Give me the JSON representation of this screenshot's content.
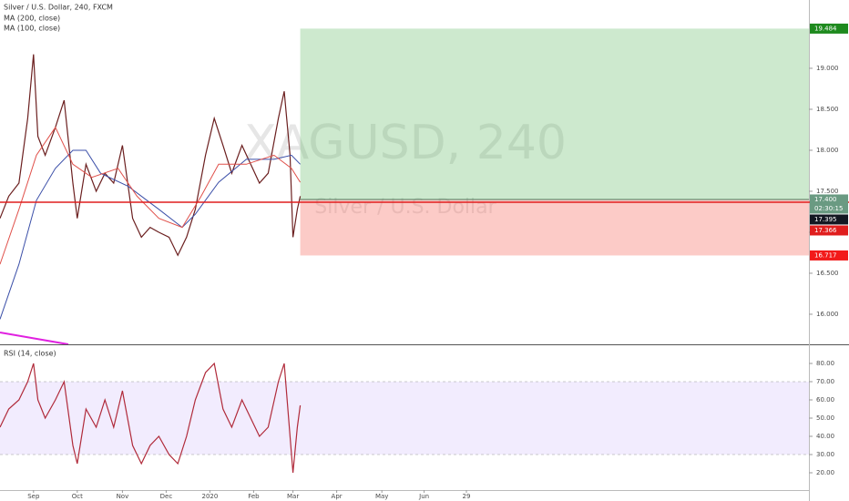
{
  "chart_data": [
    {
      "type": "line",
      "title": "Silver / U.S. Dollar, 240, FXCM",
      "watermark": {
        "symbol": "XAGUSD, 240",
        "name": "Silver / U.S. Dollar"
      },
      "xlim": [
        0,
        555
      ],
      "ylim": [
        15.633,
        19.833
      ],
      "yticks": [
        {
          "value": 16,
          "label": "16.000"
        },
        {
          "value": 16.5,
          "label": "16.500"
        },
        {
          "value": 17,
          "label": "17.000"
        },
        {
          "value": 17.5,
          "label": "17.500"
        },
        {
          "value": 18,
          "label": "18.000"
        },
        {
          "value": 18.5,
          "label": "18.500"
        },
        {
          "value": 19,
          "label": "19.000"
        }
      ],
      "series": [
        {
          "color": "#6b1f1f",
          "x": [
            0,
            6,
            13,
            19,
            23,
            26,
            31,
            38,
            44,
            50,
            53,
            59,
            66,
            72,
            78,
            84,
            91,
            97,
            103,
            109,
            116,
            122,
            128,
            134,
            141,
            147,
            153,
            159,
            166,
            172,
            178,
            184,
            191,
            195,
            199,
            201,
            204,
            206
          ],
          "values": [
            17.17,
            17.44,
            17.6,
            18.39,
            19.17,
            18.17,
            17.94,
            18.28,
            18.61,
            17.6,
            17.17,
            17.83,
            17.5,
            17.72,
            17.6,
            18.06,
            17.17,
            16.94,
            17.06,
            17.0,
            16.94,
            16.72,
            16.94,
            17.28,
            17.94,
            18.39,
            18.06,
            17.72,
            18.06,
            17.83,
            17.6,
            17.72,
            18.39,
            18.72,
            17.94,
            16.94,
            17.28,
            17.44
          ]
        },
        {
          "name": "MA (200, close)",
          "color": "#3b4fa8",
          "x": [
            0,
            13,
            25,
            38,
            50,
            59,
            69,
            88,
            109,
            125,
            134,
            150,
            169,
            188,
            200,
            206
          ],
          "values": [
            15.94,
            16.61,
            17.39,
            17.78,
            18.0,
            18.0,
            17.72,
            17.56,
            17.28,
            17.06,
            17.22,
            17.61,
            17.89,
            17.89,
            17.94,
            17.83
          ]
        },
        {
          "name": "MA (100, close)",
          "color": "#e0504a",
          "x": [
            0,
            13,
            25,
            38,
            50,
            63,
            81,
            94,
            109,
            125,
            138,
            150,
            169,
            188,
            200,
            206
          ],
          "values": [
            16.61,
            17.28,
            17.94,
            18.28,
            17.83,
            17.67,
            17.78,
            17.44,
            17.17,
            17.06,
            17.44,
            17.83,
            17.83,
            17.94,
            17.78,
            17.61
          ]
        }
      ],
      "position": {
        "x": [
          206,
          555
        ]
      },
      "price_labels": [
        {
          "value": 19.484,
          "label": "19.484",
          "color": "#1e8a1e"
        },
        {
          "value": 17.4,
          "label": "17.400",
          "color": "#6a9a82",
          "countdown": "02:30:15"
        },
        {
          "value": 17.395,
          "label": "17.395",
          "color": "#131722"
        },
        {
          "value": 17.366,
          "label": "17.366",
          "color": "#e01e1e",
          "line": true
        },
        {
          "value": 16.717,
          "label": "16.717",
          "color": "#f21a1a"
        }
      ]
    },
    {
      "type": "line",
      "title": "RSI (14, close)",
      "xlim": [
        0,
        555
      ],
      "ylim": [
        10.5,
        89.5
      ],
      "yticks": [
        {
          "value": 20,
          "label": "20.00"
        },
        {
          "value": 30,
          "label": "30.00"
        },
        {
          "value": 40,
          "label": "40.00"
        },
        {
          "value": 50,
          "label": "50.00"
        },
        {
          "value": 60,
          "label": "60.00"
        },
        {
          "value": 70,
          "label": "70.00"
        },
        {
          "value": 80,
          "label": "80.00"
        }
      ],
      "band": [
        30,
        70
      ],
      "xticks": [
        {
          "value": 23,
          "label": "Sep"
        },
        {
          "value": 53,
          "label": "Oct"
        },
        {
          "value": 84,
          "label": "Nov"
        },
        {
          "value": 114,
          "label": "Dec"
        },
        {
          "value": 144,
          "label": "2020"
        },
        {
          "value": 174,
          "label": "Feb"
        },
        {
          "value": 201,
          "label": "Mar"
        },
        {
          "value": 231,
          "label": "Apr"
        },
        {
          "value": 262,
          "label": "May"
        },
        {
          "value": 291,
          "label": "Jun"
        },
        {
          "value": 320,
          "label": "29"
        }
      ],
      "series": [
        {
          "color": "#b02a3a",
          "x": [
            0,
            6,
            13,
            19,
            23,
            26,
            31,
            38,
            44,
            50,
            53,
            59,
            66,
            72,
            78,
            84,
            91,
            97,
            103,
            109,
            116,
            122,
            128,
            134,
            141,
            147,
            153,
            159,
            166,
            172,
            178,
            184,
            191,
            195,
            199,
            201,
            204,
            206
          ],
          "values": [
            45,
            55,
            60,
            70,
            80,
            60,
            50,
            60,
            70,
            35,
            25,
            55,
            45,
            60,
            45,
            65,
            35,
            25,
            35,
            40,
            30,
            25,
            40,
            60,
            75,
            80,
            55,
            45,
            60,
            50,
            40,
            45,
            70,
            80,
            40,
            20,
            45,
            57
          ]
        }
      ]
    }
  ]
}
